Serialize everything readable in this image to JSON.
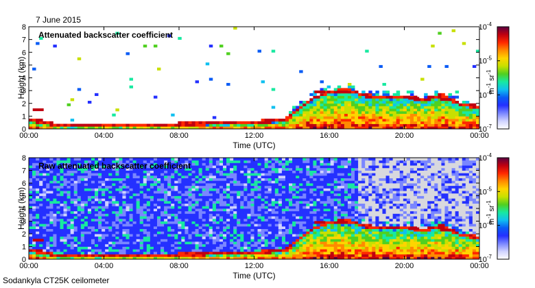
{
  "date_label": "7 June 2015",
  "footer_label": "Sodankyla CT25K ceilometer",
  "colors": {
    "background": "#ffffff",
    "noise": "#d8d8de",
    "colormap": [
      "#ffffff",
      "#cfd2ff",
      "#7a86ff",
      "#2430ff",
      "#0a5cf5",
      "#10c0f0",
      "#18e9a0",
      "#50d020",
      "#c8e000",
      "#ffd400",
      "#ff8a00",
      "#ff2800",
      "#c00010",
      "#5a0040"
    ]
  },
  "chart_data": [
    {
      "type": "heatmap",
      "title": "Attenuated backscatter coefficient",
      "xlabel": "Time (UTC)",
      "ylabel": "Height (km)",
      "xlim": [
        0,
        24
      ],
      "ylim": [
        0,
        8
      ],
      "xticks": [
        "00:00",
        "04:00",
        "08:00",
        "12:00",
        "16:00",
        "20:00",
        "00:00"
      ],
      "yticks": [
        "0",
        "1",
        "2",
        "3",
        "4",
        "5",
        "6",
        "7",
        "8"
      ],
      "colorbar": {
        "scale": "log",
        "range": [
          1e-07,
          0.0001
        ],
        "ticks": [
          {
            "value": -4,
            "base": "10",
            "exp": "-4"
          },
          {
            "value": -5,
            "base": "10",
            "exp": "-5"
          },
          {
            "value": -6,
            "base": "10",
            "exp": "-6"
          },
          {
            "value": -7,
            "base": "10",
            "exp": "-7"
          }
        ],
        "unit_main": "m",
        "unit_exp1": "-1",
        "unit_mid": " sr",
        "unit_exp2": "-1"
      },
      "boundary_layer_km": [
        [
          0,
          0.55
        ],
        [
          1,
          0.4
        ],
        [
          1.4,
          0.15
        ],
        [
          4,
          0.2
        ],
        [
          8,
          0.25
        ],
        [
          12,
          0.4
        ],
        [
          13.7,
          0.6
        ],
        [
          14.2,
          1.2
        ],
        [
          15,
          2.2
        ],
        [
          16,
          2.8
        ],
        [
          17,
          2.9
        ],
        [
          18,
          2.5
        ],
        [
          19,
          2.3
        ],
        [
          20,
          2.4
        ],
        [
          21,
          2.2
        ],
        [
          22,
          2.5
        ],
        [
          23,
          1.8
        ],
        [
          24,
          1.6
        ]
      ],
      "cloud_bases_km": [
        [
          0.5,
          1.5
        ],
        [
          15.5,
          2.9
        ],
        [
          16.7,
          2.9
        ],
        [
          20.5,
          2.4
        ],
        [
          22.2,
          2.3
        ]
      ],
      "noise_level": "low"
    },
    {
      "type": "heatmap",
      "title": "Raw attenuated backscatter coefficient",
      "xlabel": "Time (UTC)",
      "ylabel": "Height (km)",
      "xlim": [
        0,
        24
      ],
      "ylim": [
        0,
        8
      ],
      "xticks": [
        "00:00",
        "04:00",
        "08:00",
        "12:00",
        "16:00",
        "20:00",
        "00:00"
      ],
      "yticks": [
        "0",
        "1",
        "2",
        "3",
        "4",
        "5",
        "6",
        "7",
        "8"
      ],
      "colorbar": {
        "scale": "log",
        "range": [
          1e-07,
          0.0001
        ],
        "ticks": [
          {
            "value": -4,
            "base": "10",
            "exp": "-4"
          },
          {
            "value": -5,
            "base": "10",
            "exp": "-5"
          },
          {
            "value": -6,
            "base": "10",
            "exp": "-6"
          },
          {
            "value": -7,
            "base": "10",
            "exp": "-7"
          }
        ],
        "unit_main": "m",
        "unit_exp1": "-1",
        "unit_mid": " sr",
        "unit_exp2": "-1"
      },
      "boundary_layer_km": [
        [
          0,
          0.55
        ],
        [
          1,
          0.4
        ],
        [
          1.4,
          0.15
        ],
        [
          4,
          0.2
        ],
        [
          8,
          0.25
        ],
        [
          12,
          0.4
        ],
        [
          13.7,
          0.6
        ],
        [
          14.2,
          1.2
        ],
        [
          15,
          2.2
        ],
        [
          16,
          2.8
        ],
        [
          17,
          2.9
        ],
        [
          18,
          2.5
        ],
        [
          19,
          2.3
        ],
        [
          20,
          2.4
        ],
        [
          21,
          2.2
        ],
        [
          22,
          2.5
        ],
        [
          23,
          1.8
        ],
        [
          24,
          1.6
        ]
      ],
      "cloud_bases_km": [
        [
          0.5,
          1.5
        ],
        [
          15.5,
          2.9
        ],
        [
          16.7,
          2.9
        ],
        [
          20.5,
          2.4
        ],
        [
          22.2,
          2.3
        ]
      ],
      "noise_level": "high"
    }
  ]
}
